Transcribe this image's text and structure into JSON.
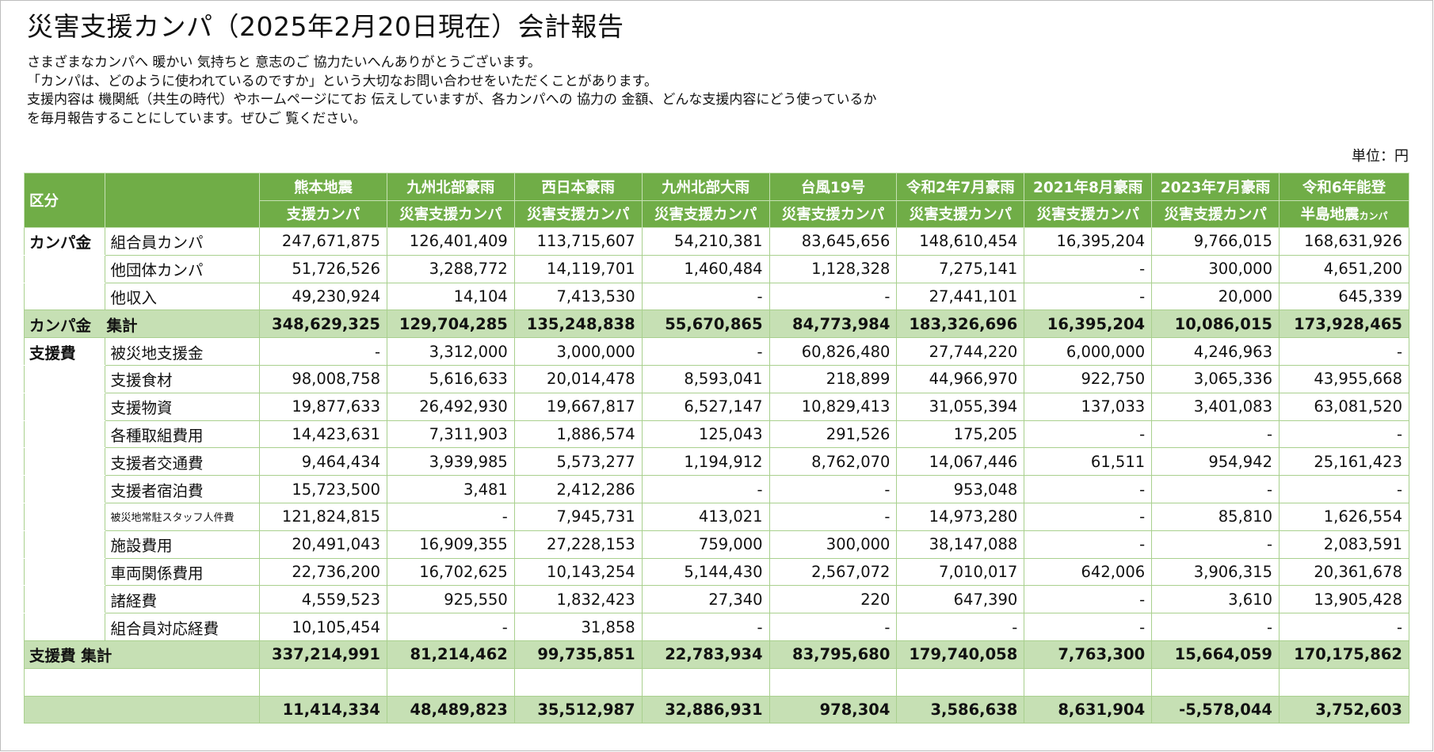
{
  "title": "災害支援カンパ（2025年2月20日現在）会計報告",
  "intro": [
    "さまざまなカンパへ 暖かい 気持ちと 意志のご 協力たいへんありがとうございます。",
    "「カンパは、どのように使われているのですか」という大切なお問い合わせをいただくことがあります。",
    "支援内容は 機関紙（共生の時代）やホームページにてお 伝えしていますが、各カンパへの 協力の 金額、どんな支援内容にどう使っているか",
    "を毎月報告することにしています。ぜひご 覧ください。"
  ],
  "unit": "単位：円",
  "header": {
    "kubun": "区分",
    "columns": [
      {
        "line1": "熊本地震",
        "line2": "支援カンパ"
      },
      {
        "line1": "九州北部豪雨",
        "line2": "災害支援カンパ"
      },
      {
        "line1": "西日本豪雨",
        "line2": "災害支援カンパ"
      },
      {
        "line1": "九州北部大雨",
        "line2": "災害支援カンパ"
      },
      {
        "line1": "台風19号",
        "line2": "災害支援カンパ"
      },
      {
        "line1": "令和2年7月豪雨",
        "line2": "災害支援カンパ"
      },
      {
        "line1": "2021年8月豪雨",
        "line2": "災害支援カンパ"
      },
      {
        "line1": "2023年7月豪雨",
        "line2": "災害支援カンパ"
      },
      {
        "line1": "令和6年能登",
        "line2": "半島地震",
        "line2_suffix": "カンパ"
      }
    ]
  },
  "income": {
    "category": "カンパ金",
    "rows": [
      {
        "label": "組合員カンパ",
        "values": [
          "247,671,875",
          "126,401,409",
          "113,715,607",
          "54,210,381",
          "83,645,656",
          "148,610,454",
          "16,395,204",
          "9,766,015",
          "168,631,926"
        ]
      },
      {
        "label": "他団体カンパ",
        "values": [
          "51,726,526",
          "3,288,772",
          "14,119,701",
          "1,460,484",
          "1,128,328",
          "7,275,141",
          "-",
          "300,000",
          "4,651,200"
        ]
      },
      {
        "label": "他収入",
        "values": [
          "49,230,924",
          "14,104",
          "7,413,530",
          "-",
          "-",
          "27,441,101",
          "-",
          "20,000",
          "645,339"
        ]
      }
    ],
    "subtotal": {
      "label": "カンパ金　集計",
      "values": [
        "348,629,325",
        "129,704,285",
        "135,248,838",
        "55,670,865",
        "84,773,984",
        "183,326,696",
        "16,395,204",
        "10,086,015",
        "173,928,465"
      ]
    }
  },
  "expense": {
    "category": "支援費",
    "rows": [
      {
        "label": "被災地支援金",
        "values": [
          "-",
          "3,312,000",
          "3,000,000",
          "-",
          "60,826,480",
          "27,744,220",
          "6,000,000",
          "4,246,963",
          "-"
        ]
      },
      {
        "label": "支援食材",
        "values": [
          "98,008,758",
          "5,616,633",
          "20,014,478",
          "8,593,041",
          "218,899",
          "44,966,970",
          "922,750",
          "3,065,336",
          "43,955,668"
        ]
      },
      {
        "label": "支援物資",
        "values": [
          "19,877,633",
          "26,492,930",
          "19,667,817",
          "6,527,147",
          "10,829,413",
          "31,055,394",
          "137,033",
          "3,401,083",
          "63,081,520"
        ]
      },
      {
        "label": "各種取組費用",
        "values": [
          "14,423,631",
          "7,311,903",
          "1,886,574",
          "125,043",
          "291,526",
          "175,205",
          "-",
          "-",
          "-"
        ]
      },
      {
        "label": "支援者交通費",
        "values": [
          "9,464,434",
          "3,939,985",
          "5,573,277",
          "1,194,912",
          "8,762,070",
          "14,067,446",
          "61,511",
          "954,942",
          "25,161,423"
        ]
      },
      {
        "label": "支援者宿泊費",
        "values": [
          "15,723,500",
          "3,481",
          "2,412,286",
          "-",
          "-",
          "953,048",
          "-",
          "-",
          "-"
        ]
      },
      {
        "label": "被災地常駐スタッフ人件費",
        "small": true,
        "values": [
          "121,824,815",
          "-",
          "7,945,731",
          "413,021",
          "-",
          "14,973,280",
          "-",
          "85,810",
          "1,626,554"
        ]
      },
      {
        "label": "施設費用",
        "values": [
          "20,491,043",
          "16,909,355",
          "27,228,153",
          "759,000",
          "300,000",
          "38,147,088",
          "-",
          "-",
          "2,083,591"
        ]
      },
      {
        "label": "車両関係費用",
        "values": [
          "22,736,200",
          "16,702,625",
          "10,143,254",
          "5,144,430",
          "2,567,072",
          "7,010,017",
          "642,006",
          "3,906,315",
          "20,361,678"
        ]
      },
      {
        "label": "諸経費",
        "values": [
          "4,559,523",
          "925,550",
          "1,832,423",
          "27,340",
          "220",
          "647,390",
          "-",
          "3,610",
          "13,905,428"
        ]
      },
      {
        "label": "組合員対応経費",
        "values": [
          "10,105,454",
          "-",
          "31,858",
          "-",
          "-",
          "-",
          "-",
          "-",
          "-"
        ]
      }
    ],
    "subtotal": {
      "label": "支援費 集計",
      "values": [
        "337,214,991",
        "81,214,462",
        "99,735,851",
        "22,783,934",
        "83,795,680",
        "179,740,058",
        "7,763,300",
        "15,664,059",
        "170,175,862"
      ]
    }
  },
  "balance": {
    "label": "",
    "values": [
      "11,414,334",
      "48,489,823",
      "35,512,987",
      "32,886,931",
      "978,304",
      "3,586,638",
      "8,631,904",
      "-5,578,044",
      "3,752,603"
    ]
  },
  "colors": {
    "header_bg": "#70ad47",
    "subtotal_bg": "#c6e0b4",
    "grid": "#a9d08e"
  }
}
